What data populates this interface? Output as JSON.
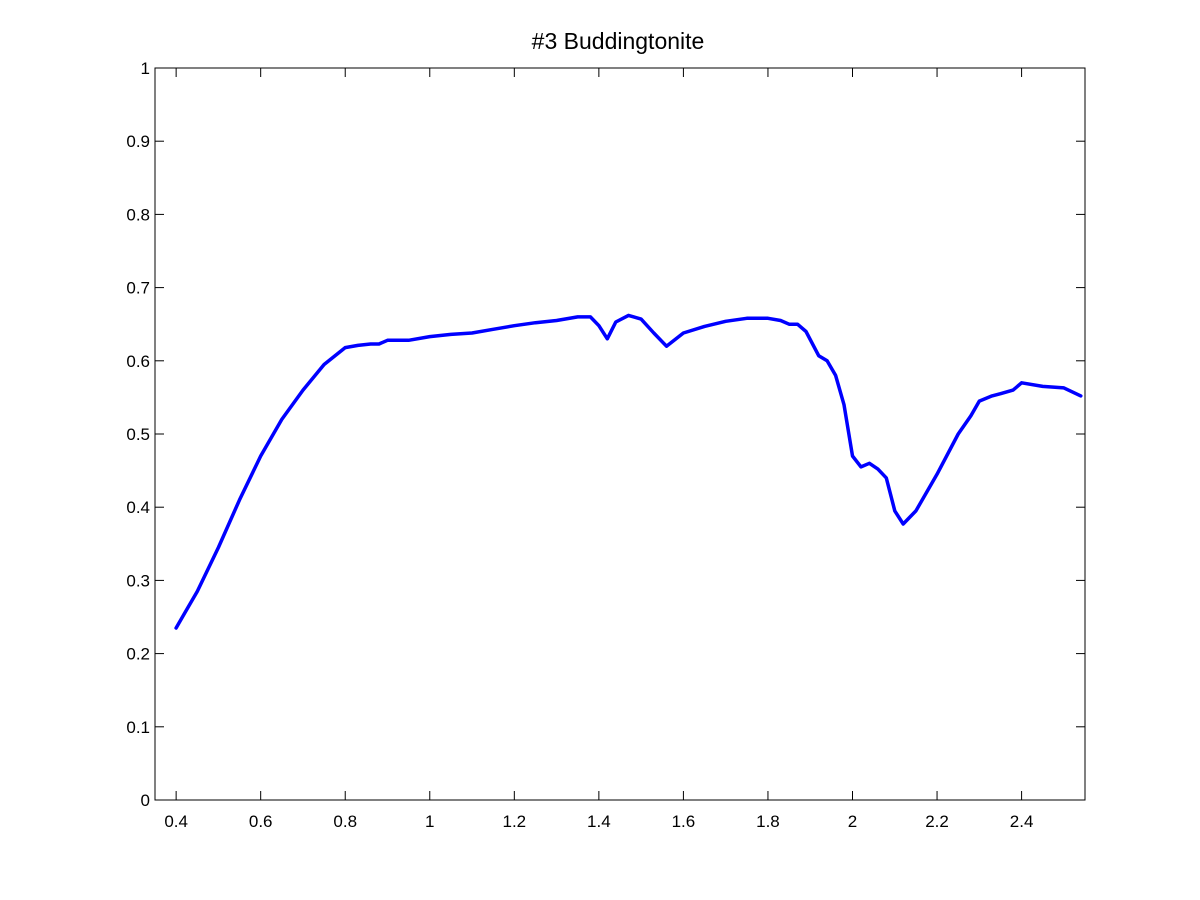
{
  "chart_data": {
    "type": "line",
    "title": "#3 Buddingtonite",
    "xlabel": "",
    "ylabel": "",
    "xlim": [
      0.35,
      2.55
    ],
    "ylim": [
      0,
      1
    ],
    "x_ticks": [
      0.4,
      0.6,
      0.8,
      1,
      1.2,
      1.4,
      1.6,
      1.8,
      2,
      2.2,
      2.4
    ],
    "x_tick_labels": [
      "0.4",
      "0.6",
      "0.8",
      "1",
      "1.2",
      "1.4",
      "1.6",
      "1.8",
      "2",
      "2.2",
      "2.4"
    ],
    "y_ticks": [
      0,
      0.1,
      0.2,
      0.3,
      0.4,
      0.5,
      0.6,
      0.7,
      0.8,
      0.9,
      1
    ],
    "y_tick_labels": [
      "0",
      "0.1",
      "0.2",
      "0.3",
      "0.4",
      "0.5",
      "0.6",
      "0.7",
      "0.8",
      "0.9",
      "1"
    ],
    "grid": false,
    "line_color": "#0000ff",
    "series": [
      {
        "x": [
          0.4,
          0.42,
          0.45,
          0.5,
          0.55,
          0.6,
          0.65,
          0.7,
          0.75,
          0.8,
          0.83,
          0.86,
          0.88,
          0.9,
          0.95,
          1.0,
          1.05,
          1.1,
          1.15,
          1.2,
          1.25,
          1.3,
          1.35,
          1.38,
          1.4,
          1.42,
          1.44,
          1.47,
          1.5,
          1.53,
          1.56,
          1.6,
          1.65,
          1.7,
          1.75,
          1.8,
          1.83,
          1.85,
          1.87,
          1.89,
          1.92,
          1.94,
          1.96,
          1.98,
          2.0,
          2.02,
          2.04,
          2.06,
          2.08,
          2.1,
          2.12,
          2.15,
          2.2,
          2.25,
          2.28,
          2.3,
          2.33,
          2.35,
          2.38,
          2.4,
          2.45,
          2.5,
          2.54
        ],
        "y": [
          0.235,
          0.255,
          0.285,
          0.345,
          0.41,
          0.47,
          0.52,
          0.56,
          0.595,
          0.618,
          0.621,
          0.623,
          0.623,
          0.628,
          0.628,
          0.633,
          0.636,
          0.638,
          0.643,
          0.648,
          0.652,
          0.655,
          0.66,
          0.66,
          0.648,
          0.63,
          0.653,
          0.662,
          0.657,
          0.638,
          0.62,
          0.638,
          0.647,
          0.654,
          0.658,
          0.658,
          0.655,
          0.65,
          0.65,
          0.64,
          0.607,
          0.6,
          0.58,
          0.54,
          0.47,
          0.455,
          0.46,
          0.452,
          0.44,
          0.395,
          0.377,
          0.395,
          0.445,
          0.5,
          0.525,
          0.545,
          0.552,
          0.555,
          0.56,
          0.57,
          0.565,
          0.563,
          0.552
        ]
      }
    ]
  }
}
